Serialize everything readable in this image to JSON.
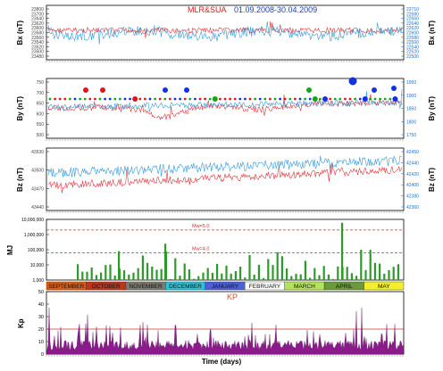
{
  "chart_data": [
    {
      "id": "bx",
      "type": "line",
      "ylabel_left": "Bx (nT)",
      "ylabel_right": "Bx (nT)",
      "left_ticks": [
        "23800",
        "23700",
        "23640",
        "23620",
        "23600",
        "23580",
        "23560",
        "23540",
        "23520",
        "23500",
        "23480"
      ],
      "right_ticks": [
        "22710",
        "22680",
        "22660",
        "22640",
        "22620",
        "22600",
        "22580",
        "22560",
        "22540",
        "22520",
        "22500"
      ],
      "series": [
        {
          "name": "MLR",
          "color": "#d91f26",
          "level": 0.46,
          "noise": 0.05
        },
        {
          "name": "SUA",
          "color": "#1f8fd6",
          "level": 0.52,
          "noise": 0.09
        }
      ]
    },
    {
      "id": "by",
      "type": "line",
      "ylabel_left": "By (nT)",
      "ylabel_right": "By (nT)",
      "left_ticks": [
        "750",
        "700",
        "650",
        "600",
        "550",
        "500"
      ],
      "right_ticks": [
        "1950",
        "1900",
        "1850",
        "1800",
        "1750"
      ],
      "series": [
        {
          "name": "MLR",
          "color": "#d91f26",
          "level": 0.5,
          "noise": 0.05
        },
        {
          "name": "SUA",
          "color": "#1f8fd6",
          "level": 0.48,
          "noise": 0.05
        }
      ],
      "dot_colors": [
        "#e0151b",
        "#1430e6",
        "#16a517"
      ]
    },
    {
      "id": "bz",
      "type": "line",
      "ylabel_left": "Bz (nT)",
      "ylabel_right": "Bz (nT)",
      "left_ticks": [
        "43530",
        "43500",
        "43470",
        "43440"
      ],
      "right_ticks": [
        "42450",
        "42440",
        "42420",
        "42400",
        "42380",
        "42360"
      ],
      "series": [
        {
          "name": "MLR",
          "color": "#d91f26",
          "level": 0.6,
          "noise": 0.06
        },
        {
          "name": "SUA",
          "color": "#1f8fd6",
          "level": 0.4,
          "noise": 0.08
        }
      ]
    },
    {
      "id": "mj",
      "type": "bar",
      "ylabel": "MJ",
      "scale": "log",
      "ylim": [
        1000,
        10000000
      ],
      "yticks": [
        "10,000,000",
        "1,000,000",
        "100,000",
        "10,000",
        "1,000"
      ],
      "ref_lines": [
        {
          "label": "Mw=5.0",
          "value": 2000000
        },
        {
          "label": "Mw=4.0",
          "value": 63000
        }
      ],
      "bar_color": "#2e9a2a"
    },
    {
      "id": "kp",
      "type": "bar",
      "title": "KP",
      "ylabel": "Kp",
      "ylim": [
        0,
        50
      ],
      "yticks": [
        "50",
        "40",
        "30",
        "20",
        "10",
        "0"
      ],
      "ref_value": 20,
      "bar_color": "#8b1a8b",
      "xlabel": "Time (days)"
    }
  ],
  "title": {
    "part1": "MLR&SUA",
    "part2": "01.09.2008-30.04.2009"
  },
  "months": [
    {
      "label": "SEPTEMBER",
      "color": "#e05a10"
    },
    {
      "label": "OCTOBER",
      "color": "#c0351a"
    },
    {
      "label": "NOVEMBER",
      "color": "#7a7a70"
    },
    {
      "label": "DECEMBER",
      "color": "#29c4d8"
    },
    {
      "label": "JANUARY",
      "color": "#4a5fd8"
    },
    {
      "label": "FEBRUARY",
      "color": "#ffffff"
    },
    {
      "label": "MARCH",
      "color": "#b4e25a"
    },
    {
      "label": "APRIL",
      "color": "#6a9a3a"
    },
    {
      "label": "MAY",
      "color": "#f4ef2c"
    }
  ]
}
